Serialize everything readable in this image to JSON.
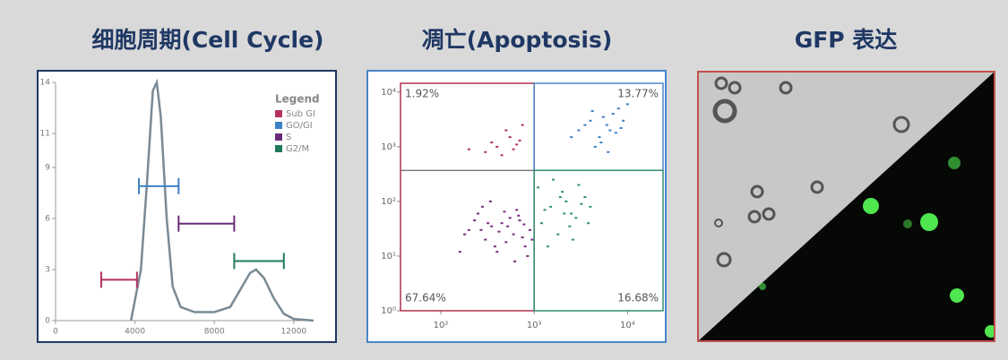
{
  "chart_data": [
    {
      "type": "line",
      "title": "细胞周期(Cell Cycle)",
      "color": "#7a8a94",
      "x": [
        3800,
        4300,
        4600,
        4900,
        5100,
        5300,
        5600,
        5900,
        6300,
        7000,
        8000,
        8800,
        9300,
        9800,
        10100,
        10500,
        11000,
        11500,
        12000,
        13000
      ],
      "values": [
        0,
        3,
        8,
        13.5,
        14,
        12,
        6,
        2,
        0.8,
        0.5,
        0.5,
        0.8,
        1.8,
        2.8,
        3,
        2.5,
        1.3,
        0.4,
        0.1,
        0
      ],
      "xlim": [
        0,
        13000
      ],
      "ylim": [
        0,
        14
      ],
      "xticks": [
        0,
        4000,
        8000,
        12000
      ],
      "yticks": [
        0,
        3,
        6,
        9,
        11,
        14
      ],
      "legend_title": "Legend",
      "gates": [
        {
          "name": "Sub GI",
          "color": "#b5325f",
          "range": [
            2300,
            4100
          ],
          "level": 2.4
        },
        {
          "name": "GO/GI",
          "color": "#3b82c4",
          "range": [
            4200,
            6200
          ],
          "level": 7.9
        },
        {
          "name": "S",
          "color": "#6b2c7a",
          "range": [
            6200,
            9000
          ],
          "level": 5.7
        },
        {
          "name": "G2/M",
          "color": "#1f7a5c",
          "range": [
            9000,
            11500
          ],
          "level": 3.5
        }
      ]
    },
    {
      "type": "scatter",
      "title": "凋亡(Apoptosis)",
      "log": true,
      "xlim": [
        37,
        24000
      ],
      "ylim": [
        1,
        14500
      ],
      "xticks": [
        {
          "value": 100,
          "label": "10²"
        },
        {
          "value": 1000,
          "label": "10³"
        },
        {
          "value": 10000,
          "label": "10⁴"
        }
      ],
      "yticks": [
        {
          "value": 1,
          "label": "10⁰"
        },
        {
          "value": 10,
          "label": "10¹"
        },
        {
          "value": 100,
          "label": "10²"
        },
        {
          "value": 1000,
          "label": "10³"
        },
        {
          "value": 10000,
          "label": "10⁴"
        }
      ],
      "quadrant_x": 1000,
      "quadrant_y": 370,
      "quadrant_labels": [
        "1.92%",
        "13.77%",
        "67.64%",
        "16.68%"
      ],
      "quadrant_colors": [
        "#b0304f",
        "#4a86c8",
        "#2f8f6f"
      ],
      "series": [
        {
          "color": "#7b2a7f",
          "x": [
            200,
            300,
            450,
            600,
            800,
            250,
            350,
            500,
            700,
            900,
            180,
            280,
            400,
            550,
            750,
            320,
            420,
            650,
            850,
            230,
            380,
            520,
            680,
            950,
            160,
            270,
            480,
            620,
            780,
            340
          ],
          "values": [
            30,
            20,
            40,
            25,
            15,
            60,
            35,
            18,
            45,
            30,
            25,
            80,
            12,
            50,
            22,
            40,
            28,
            70,
            10,
            45,
            15,
            35,
            55,
            20,
            12,
            30,
            65,
            8,
            38,
            100
          ]
        },
        {
          "color": "#2f8f6f",
          "x": [
            1200,
            1500,
            2000,
            2500,
            3000,
            1800,
            2200,
            3500,
            1400,
            2800,
            4000,
            1600,
            2400,
            3200,
            1100,
            2100,
            2600,
            1900,
            3800,
            1300
          ],
          "values": [
            40,
            80,
            150,
            60,
            200,
            25,
            100,
            120,
            15,
            50,
            80,
            250,
            35,
            90,
            180,
            60,
            20,
            120,
            40,
            70
          ]
        },
        {
          "color": "#3a7fc4",
          "x": [
            3000,
            4000,
            5000,
            6000,
            7000,
            8000,
            4500,
            5500,
            6500,
            9000,
            3500,
            10000,
            5200,
            7500,
            4200,
            6200,
            2500,
            8500
          ],
          "values": [
            2000,
            3000,
            1500,
            2500,
            4000,
            5000,
            1000,
            3500,
            2000,
            3000,
            2500,
            6000,
            1200,
            1800,
            4500,
            800,
            1500,
            2200
          ]
        },
        {
          "color": "#b0306a",
          "x": [
            200,
            350,
            450,
            550,
            650,
            750,
            300,
            500,
            600,
            700,
            400
          ],
          "values": [
            900,
            1200,
            700,
            1500,
            1100,
            2500,
            800,
            2000,
            900,
            1300,
            1000
          ]
        }
      ]
    }
  ],
  "image_panel": {
    "title": "GFP 表达"
  }
}
